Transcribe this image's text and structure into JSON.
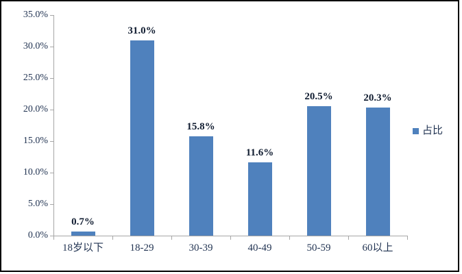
{
  "chart_data": {
    "type": "bar",
    "categories": [
      "18岁以下",
      "18-29",
      "30-39",
      "40-49",
      "50-59",
      "60以上"
    ],
    "values": [
      0.7,
      31.0,
      15.8,
      11.6,
      20.5,
      20.3
    ],
    "data_labels": [
      "0.7%",
      "31.0%",
      "15.8%",
      "11.6%",
      "20.5%",
      "20.3%"
    ],
    "series_name": "占比",
    "title": "",
    "xlabel": "",
    "ylabel": "",
    "ylim": [
      0,
      35
    ],
    "ytick_step": 5,
    "ytick_labels": [
      "0.0%",
      "5.0%",
      "10.0%",
      "15.0%",
      "20.0%",
      "25.0%",
      "30.0%",
      "35.0%"
    ],
    "grid": false,
    "legend_position": "right"
  },
  "legend": {
    "label": "占比"
  },
  "colors": {
    "bar": "#4F81BD",
    "axis": "#A6A6A6",
    "tick_text": "#1F3150",
    "data_label_text": "#101C30",
    "frame_border": "#000000",
    "background": "#FFFFFF"
  }
}
